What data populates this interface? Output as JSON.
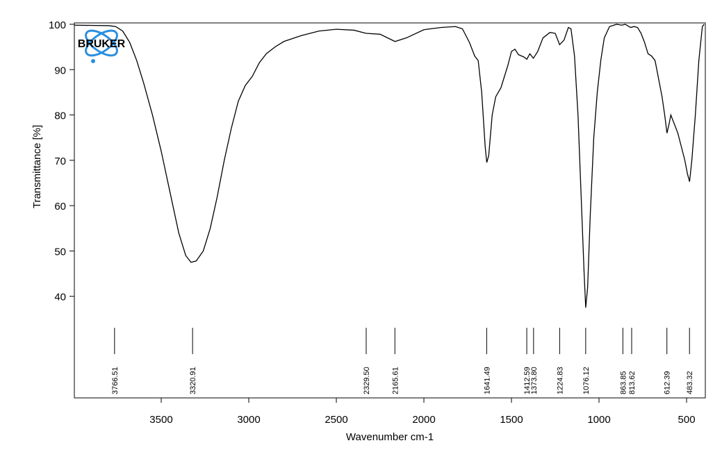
{
  "chart_data": {
    "type": "line",
    "logo": "BRUKER",
    "xlabel": "Wavenumber cm-1",
    "ylabel": "Transmittance [%]",
    "color": "#000000",
    "xlim": [
      3996,
      393
    ],
    "ylim": [
      17.6,
      100.3
    ],
    "xticks": [
      3500,
      3000,
      2500,
      2000,
      1500,
      1000,
      500
    ],
    "yticks": [
      40,
      50,
      60,
      70,
      80,
      90,
      100
    ],
    "peaks": [
      3766.51,
      3320.91,
      {
        "value": 2329.5,
        "label": "2329.50"
      },
      2165.61,
      1641.49,
      1412.59,
      {
        "value": 1373.8,
        "label": "1373.80"
      },
      1224.83,
      1076.12,
      863.85,
      813.62,
      612.39,
      483.32
    ],
    "x": [
      3996,
      3800,
      3760,
      3720,
      3680,
      3640,
      3600,
      3550,
      3500,
      3450,
      3400,
      3360,
      3330,
      3300,
      3260,
      3220,
      3180,
      3140,
      3100,
      3060,
      3020,
      2980,
      2940,
      2900,
      2850,
      2800,
      2700,
      2600,
      2500,
      2400,
      2330,
      2250,
      2165,
      2100,
      2000,
      1900,
      1820,
      1780,
      1740,
      1710,
      1690,
      1670,
      1650,
      1641,
      1630,
      1610,
      1590,
      1560,
      1520,
      1500,
      1480,
      1460,
      1430,
      1412,
      1395,
      1375,
      1350,
      1320,
      1280,
      1250,
      1225,
      1200,
      1175,
      1160,
      1140,
      1120,
      1100,
      1085,
      1076,
      1065,
      1050,
      1030,
      1010,
      990,
      970,
      940,
      900,
      870,
      850,
      820,
      800,
      780,
      760,
      740,
      720,
      700,
      680,
      660,
      640,
      625,
      612,
      600,
      590,
      570,
      550,
      530,
      510,
      495,
      483,
      470,
      450,
      430,
      410,
      400
    ],
    "values": [
      99.8,
      99.7,
      99.5,
      98.5,
      96,
      92,
      87,
      80,
      72,
      63,
      54,
      49,
      47.5,
      47.8,
      50,
      55,
      62,
      70,
      77,
      83,
      86.5,
      88.5,
      91.5,
      93.5,
      95,
      96.2,
      97.5,
      98.5,
      98.9,
      98.7,
      98,
      97.8,
      96.2,
      97,
      98.8,
      99.3,
      99.5,
      99,
      96,
      93,
      92,
      85,
      73,
      69.5,
      71,
      80,
      84,
      86,
      91,
      94,
      94.5,
      93.3,
      92.8,
      92.3,
      93.5,
      92.5,
      94,
      97,
      98.2,
      98,
      95.5,
      96.5,
      99.3,
      99,
      93,
      80,
      60,
      45,
      37.5,
      42,
      58,
      75,
      85,
      92,
      97,
      99.5,
      100,
      99.8,
      100,
      99.3,
      99.5,
      99.3,
      98,
      96,
      93.5,
      93,
      92,
      88,
      84,
      80,
      76,
      78,
      80,
      78,
      76,
      73,
      70,
      67,
      65.3,
      70,
      80,
      92,
      99.5,
      100
    ]
  }
}
